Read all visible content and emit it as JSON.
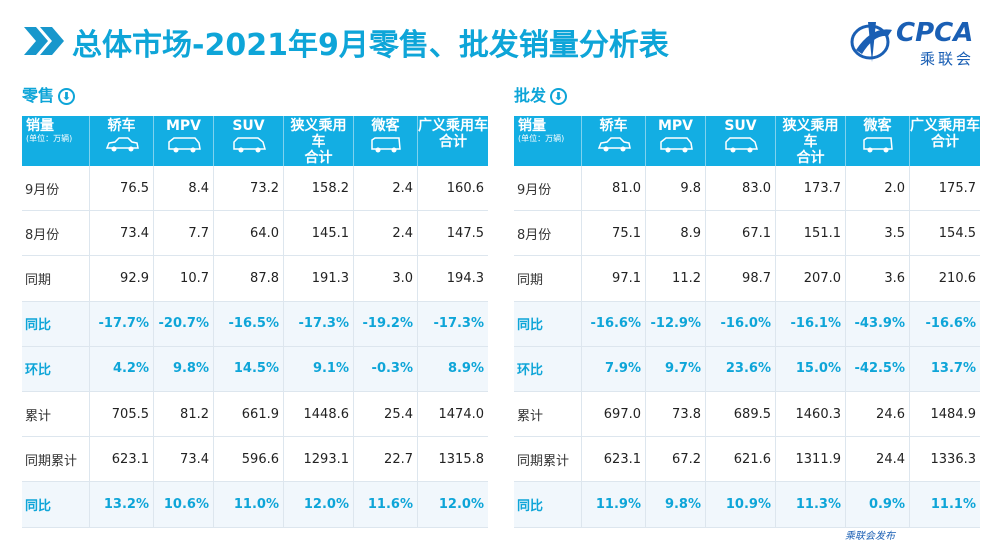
{
  "title": "总体市场-2021年9月零售、批发销量分析表",
  "logo": {
    "text": "CPCA",
    "cn": "乘联会"
  },
  "footer_note": "乘联会发布",
  "panels": [
    {
      "section": "零售",
      "unit_label": "销量",
      "unit_sub": "(单位：万辆)",
      "columns": [
        {
          "line1": "轿车",
          "line2": ""
        },
        {
          "line1": "MPV",
          "line2": ""
        },
        {
          "line1": "SUV",
          "line2": ""
        },
        {
          "line1": "狭义乘用车",
          "line2": "合计"
        },
        {
          "line1": "微客",
          "line2": ""
        },
        {
          "line1": "广义乘用车",
          "line2": "合计"
        }
      ],
      "rows": [
        {
          "label": "9月份",
          "values": [
            "76.5",
            "8.4",
            "73.2",
            "158.2",
            "2.4",
            "160.6"
          ],
          "pct": false
        },
        {
          "label": "8月份",
          "values": [
            "73.4",
            "7.7",
            "64.0",
            "145.1",
            "2.4",
            "147.5"
          ],
          "pct": false
        },
        {
          "label": "同期",
          "values": [
            "92.9",
            "10.7",
            "87.8",
            "191.3",
            "3.0",
            "194.3"
          ],
          "pct": false
        },
        {
          "label": "同比",
          "values": [
            "-17.7%",
            "-20.7%",
            "-16.5%",
            "-17.3%",
            "-19.2%",
            "-17.3%"
          ],
          "pct": true
        },
        {
          "label": "环比",
          "values": [
            "4.2%",
            "9.8%",
            "14.5%",
            "9.1%",
            "-0.3%",
            "8.9%"
          ],
          "pct": true
        },
        {
          "label": "累计",
          "values": [
            "705.5",
            "81.2",
            "661.9",
            "1448.6",
            "25.4",
            "1474.0"
          ],
          "pct": false
        },
        {
          "label": "同期累计",
          "values": [
            "623.1",
            "73.4",
            "596.6",
            "1293.1",
            "22.7",
            "1315.8"
          ],
          "pct": false
        },
        {
          "label": "同比",
          "values": [
            "13.2%",
            "10.6%",
            "11.0%",
            "12.0%",
            "11.6%",
            "12.0%"
          ],
          "pct": true
        }
      ]
    },
    {
      "section": "批发",
      "unit_label": "销量",
      "unit_sub": "(单位：万辆)",
      "columns": [
        {
          "line1": "轿车",
          "line2": ""
        },
        {
          "line1": "MPV",
          "line2": ""
        },
        {
          "line1": "SUV",
          "line2": ""
        },
        {
          "line1": "狭义乘用车",
          "line2": "合计"
        },
        {
          "line1": "微客",
          "line2": ""
        },
        {
          "line1": "广义乘用车",
          "line2": "合计"
        }
      ],
      "rows": [
        {
          "label": "9月份",
          "values": [
            "81.0",
            "9.8",
            "83.0",
            "173.7",
            "2.0",
            "175.7"
          ],
          "pct": false
        },
        {
          "label": "8月份",
          "values": [
            "75.1",
            "8.9",
            "67.1",
            "151.1",
            "3.5",
            "154.5"
          ],
          "pct": false
        },
        {
          "label": "同期",
          "values": [
            "97.1",
            "11.2",
            "98.7",
            "207.0",
            "3.6",
            "210.6"
          ],
          "pct": false
        },
        {
          "label": "同比",
          "values": [
            "-16.6%",
            "-12.9%",
            "-16.0%",
            "-16.1%",
            "-43.9%",
            "-16.6%"
          ],
          "pct": true
        },
        {
          "label": "环比",
          "values": [
            "7.9%",
            "9.7%",
            "23.6%",
            "15.0%",
            "-42.5%",
            "13.7%"
          ],
          "pct": true
        },
        {
          "label": "累计",
          "values": [
            "697.0",
            "73.8",
            "689.5",
            "1460.3",
            "24.6",
            "1484.9"
          ],
          "pct": false
        },
        {
          "label": "同期累计",
          "values": [
            "623.1",
            "67.2",
            "621.6",
            "1311.9",
            "24.4",
            "1336.3"
          ],
          "pct": false
        },
        {
          "label": "同比",
          "values": [
            "11.9%",
            "9.8%",
            "10.9%",
            "11.3%",
            "0.9%",
            "11.1%"
          ],
          "pct": true
        }
      ]
    }
  ],
  "colors": {
    "accent": "#0ea5d8",
    "header_bg": "#13aee3",
    "pct_row_bg": "#f1f7fc"
  }
}
